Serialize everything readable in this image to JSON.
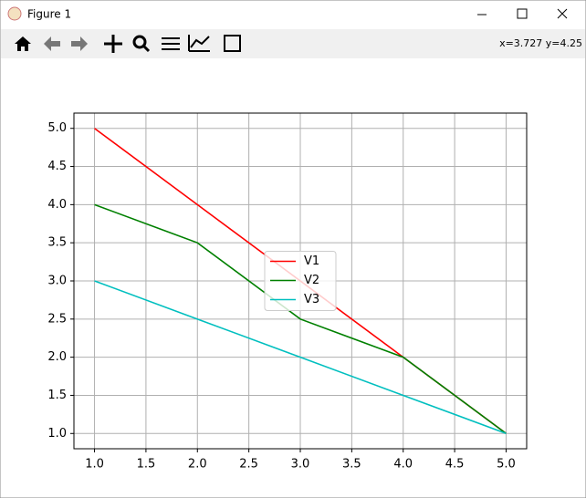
{
  "window": {
    "title": "Figure 1",
    "status": "x=3.727 y=4.25"
  },
  "chart_data": {
    "type": "line",
    "x": [
      1,
      2,
      3,
      4,
      5
    ],
    "series": [
      {
        "name": "V1",
        "color": "#ff0000",
        "values": [
          5,
          4,
          3,
          2,
          1
        ]
      },
      {
        "name": "V2",
        "color": "#008000",
        "values": [
          4,
          3.5,
          2.5,
          2,
          1
        ]
      },
      {
        "name": "V3",
        "color": "#00bfbf",
        "values": [
          3,
          2.5,
          2,
          1.5,
          1
        ]
      }
    ],
    "xlim": [
      0.8,
      5.2
    ],
    "ylim": [
      0.8,
      5.2
    ],
    "xticks": [
      {
        "value": 1,
        "label": "1.0"
      },
      {
        "value": 1.5,
        "label": "1.5"
      },
      {
        "value": 2,
        "label": "2.0"
      },
      {
        "value": 2.5,
        "label": "2.5"
      },
      {
        "value": 3,
        "label": "3.0"
      },
      {
        "value": 3.5,
        "label": "3.5"
      },
      {
        "value": 4,
        "label": "4.0"
      },
      {
        "value": 4.5,
        "label": "4.5"
      },
      {
        "value": 5,
        "label": "5.0"
      }
    ],
    "yticks": [
      {
        "value": 1,
        "label": "1.0"
      },
      {
        "value": 1.5,
        "label": "1.5"
      },
      {
        "value": 2,
        "label": "2.0"
      },
      {
        "value": 2.5,
        "label": "2.5"
      },
      {
        "value": 3,
        "label": "3.0"
      },
      {
        "value": 3.5,
        "label": "3.5"
      },
      {
        "value": 4,
        "label": "4.0"
      },
      {
        "value": 4.5,
        "label": "4.5"
      },
      {
        "value": 5,
        "label": "5.0"
      }
    ],
    "grid": true,
    "legend": "center"
  }
}
